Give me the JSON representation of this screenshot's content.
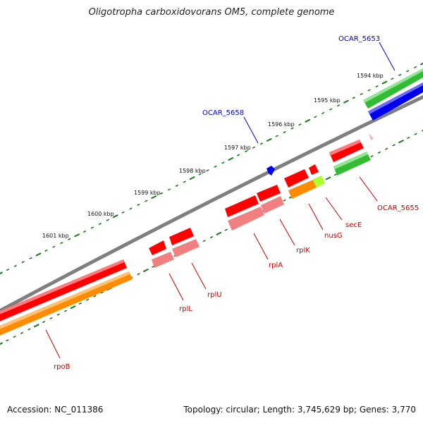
{
  "title": "Oligotropha carboxidovorans OM5, complete genome",
  "footer": {
    "accession": "Accession: NC_011386",
    "topology": "Topology: circular; Length: 3,745,629 bp; Genes: 3,770"
  },
  "ruler": [
    "1594 kbp",
    "1595 kbp",
    "1596 kbp",
    "1597 kbp",
    "1598 kbp",
    "1599 kbp",
    "1600 kbp",
    "1601 kbp"
  ],
  "genes": {
    "OCAR_5653": "OCAR_5653",
    "OCAR_5658": "OCAR_5658",
    "OCAR_5655": "OCAR_5655",
    "secE": "secE",
    "nusG": "nusG",
    "rplK": "rplK",
    "rplA": "rplA",
    "rplU": "rplU",
    "rplL": "rplL",
    "rpoB": "rpoB"
  },
  "colors": {
    "backbone": "#808080",
    "tick": "#1a7a1a",
    "red": "#ff0000",
    "salmon": "#f08080",
    "orange": "#ff8c00",
    "green": "#32cd32",
    "lime": "#adff2f",
    "blue": "#0000ff",
    "pink": "#ffb6c1",
    "label_red": "#cc0000",
    "label_blue": "#0000cc"
  }
}
